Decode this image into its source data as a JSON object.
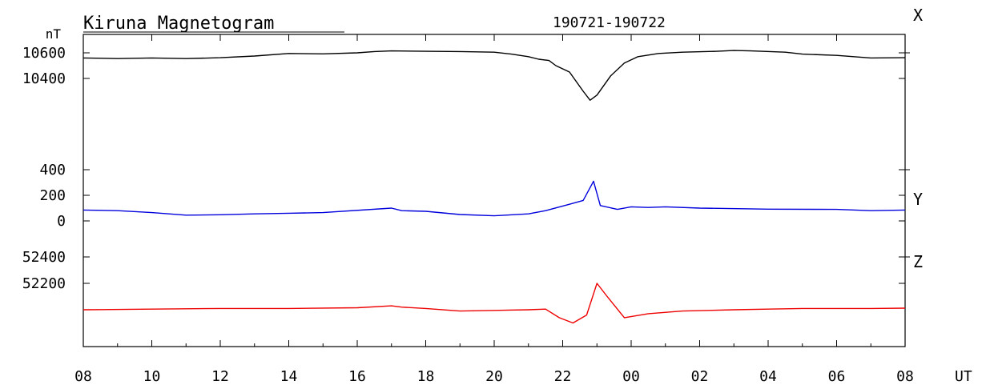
{
  "chart_data": {
    "type": "line",
    "title": "Kiruna Magnetogram",
    "date_range": "190721-190722",
    "unit_label": "nT",
    "x_unit": "UT",
    "x_ticks": [
      "08",
      "10",
      "12",
      "14",
      "16",
      "18",
      "20",
      "22",
      "00",
      "02",
      "04",
      "06",
      "08"
    ],
    "x_range_hours": [
      0,
      24
    ],
    "series": [
      {
        "name": "X",
        "color": "#000000",
        "tick_labels": [
          "10600",
          "10400"
        ],
        "tick_values": [
          10600,
          10400
        ],
        "points": [
          [
            0,
            10560
          ],
          [
            1,
            10555
          ],
          [
            2,
            10560
          ],
          [
            3,
            10555
          ],
          [
            4,
            10562
          ],
          [
            5,
            10575
          ],
          [
            6,
            10595
          ],
          [
            7,
            10592
          ],
          [
            8,
            10600
          ],
          [
            8.5,
            10610
          ],
          [
            9,
            10615
          ],
          [
            10,
            10612
          ],
          [
            11,
            10610
          ],
          [
            12,
            10605
          ],
          [
            12.5,
            10590
          ],
          [
            13,
            10570
          ],
          [
            13.3,
            10550
          ],
          [
            13.6,
            10540
          ],
          [
            13.8,
            10500
          ],
          [
            14.2,
            10450
          ],
          [
            14.6,
            10300
          ],
          [
            14.8,
            10230
          ],
          [
            15.0,
            10270
          ],
          [
            15.4,
            10420
          ],
          [
            15.8,
            10520
          ],
          [
            16.2,
            10570
          ],
          [
            16.8,
            10595
          ],
          [
            17.5,
            10605
          ],
          [
            18.5,
            10612
          ],
          [
            19,
            10618
          ],
          [
            19.5,
            10615
          ],
          [
            20.5,
            10605
          ],
          [
            21,
            10590
          ],
          [
            22,
            10580
          ],
          [
            23,
            10560
          ],
          [
            24,
            10562
          ]
        ]
      },
      {
        "name": "Y",
        "color": "#0000dd",
        "tick_labels": [
          "400",
          "200",
          "0"
        ],
        "tick_values": [
          400,
          200,
          0
        ],
        "points": [
          [
            0,
            85
          ],
          [
            1,
            80
          ],
          [
            2,
            65
          ],
          [
            3,
            45
          ],
          [
            4,
            48
          ],
          [
            5,
            55
          ],
          [
            6,
            60
          ],
          [
            7,
            65
          ],
          [
            9,
            100
          ],
          [
            9.3,
            80
          ],
          [
            10,
            75
          ],
          [
            11,
            50
          ],
          [
            12,
            40
          ],
          [
            13,
            55
          ],
          [
            13.5,
            80
          ],
          [
            14.2,
            130
          ],
          [
            14.6,
            160
          ],
          [
            14.9,
            310
          ],
          [
            15.1,
            120
          ],
          [
            15.6,
            90
          ],
          [
            16,
            110
          ],
          [
            16.5,
            105
          ],
          [
            17,
            110
          ],
          [
            18,
            100
          ],
          [
            20,
            92
          ],
          [
            22,
            90
          ],
          [
            23,
            80
          ],
          [
            24,
            85
          ]
        ]
      },
      {
        "name": "Z",
        "color": "#ee0000",
        "tick_labels": [
          "52400",
          "52200"
        ],
        "tick_values": [
          52400,
          52200
        ],
        "points": [
          [
            0,
            52000
          ],
          [
            2,
            52005
          ],
          [
            4,
            52010
          ],
          [
            6,
            52010
          ],
          [
            8,
            52015
          ],
          [
            9,
            52030
          ],
          [
            9.3,
            52020
          ],
          [
            10,
            52010
          ],
          [
            11,
            51990
          ],
          [
            12,
            51995
          ],
          [
            13,
            52000
          ],
          [
            13.5,
            52005
          ],
          [
            13.9,
            51940
          ],
          [
            14.3,
            51900
          ],
          [
            14.7,
            51960
          ],
          [
            15.0,
            52200
          ],
          [
            15.3,
            52100
          ],
          [
            15.8,
            51940
          ],
          [
            16.5,
            51970
          ],
          [
            17.5,
            51990
          ],
          [
            19,
            52000
          ],
          [
            20,
            52005
          ],
          [
            21,
            52010
          ],
          [
            22,
            52010
          ],
          [
            23,
            52010
          ],
          [
            24,
            52012
          ]
        ]
      }
    ]
  }
}
